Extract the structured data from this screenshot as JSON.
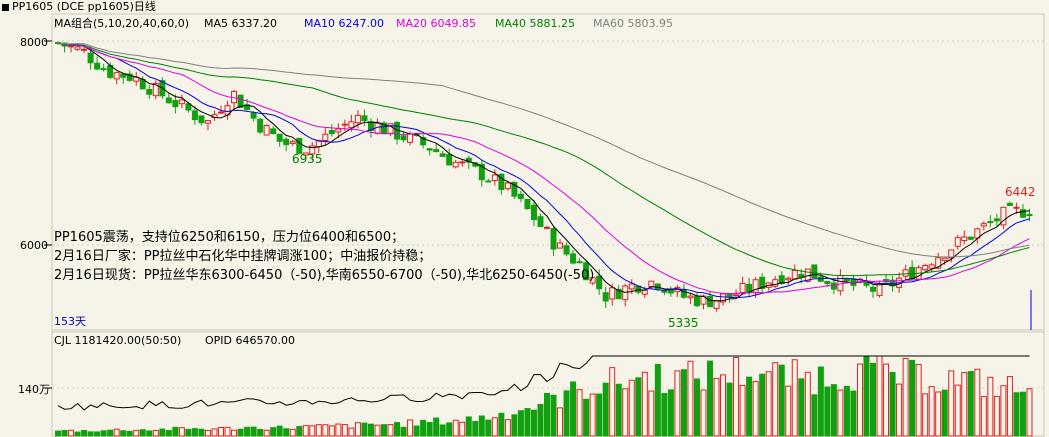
{
  "window": {
    "title": "PP1605   (DCE pp1605)日线"
  },
  "colors": {
    "background": "#f6f4e8",
    "grid": "#d0d0c0",
    "up": "#e02020",
    "down": "#10a010",
    "ma5": "#000000",
    "ma10": "#0000e0",
    "ma20": "#e000e0",
    "ma40": "#008000",
    "ma60": "#808080",
    "volume_up": "#e02020",
    "volume_down": "#10a010",
    "oi_line": "#000000",
    "annotation": "#008000"
  },
  "price_panel": {
    "legend": {
      "name": "MA组合(5,10,20,40,60,0)",
      "items": [
        {
          "label": "MA5 6337.20",
          "color": "#000000"
        },
        {
          "label": "MA10 6247.00",
          "color": "#0000e0"
        },
        {
          "label": "MA20 6049.85",
          "color": "#e000e0"
        },
        {
          "label": "MA40 5881.25",
          "color": "#008000"
        },
        {
          "label": "MA60 5803.95",
          "color": "#808080"
        }
      ]
    },
    "y_ticks": [
      "8000",
      "6000"
    ],
    "peak_labels": {
      "p1": "6935",
      "p2": "5335",
      "p3": "6442"
    },
    "period_label": "153天",
    "news": [
      "PP1605震荡，支持位6250和6150，压力位6400和6500；",
      "2月16日厂家：PP拉丝中石化华中挂牌调涨100；中油报价持稳；",
      "2月16日现货：PP拉丝华东6300-6450（-50),华南6550-6700（-50),华北6250-6450(-50)"
    ]
  },
  "volume_panel": {
    "legend": {
      "cjl": "CJL  1181420.00(50:50)",
      "opid": "OPID  646570.00"
    },
    "y_tick": "140万"
  },
  "chart_data": {
    "type": "candlestick",
    "y_axis": {
      "min": 5335,
      "max": 8000,
      "ticks": [
        6000,
        8000
      ]
    },
    "anchors": [
      {
        "label": "6935",
        "value": 6935
      },
      {
        "label": "5335",
        "value": 5335
      },
      {
        "label": "6442",
        "value": 6442
      }
    ],
    "close_path": [
      7980,
      7900,
      7700,
      7650,
      7500,
      7350,
      7200,
      7500,
      7200,
      7000,
      6950,
      7100,
      7250,
      7150,
      7050,
      6950,
      6800,
      6700,
      6550,
      6300,
      6000,
      5800,
      5500,
      5600,
      5650,
      5500,
      5450,
      5500,
      5600,
      5700,
      5750,
      5650,
      5600,
      5550,
      5700,
      5850,
      6000,
      6150,
      6300,
      6350
    ],
    "volume_path": [
      5,
      5,
      6,
      6,
      7,
      7,
      8,
      8,
      9,
      10,
      11,
      12,
      14,
      16,
      20,
      28,
      38,
      50,
      55,
      60,
      58,
      62,
      65,
      60,
      58,
      62,
      66,
      60,
      58,
      55,
      50,
      45
    ],
    "ma_latest": {
      "MA5": 6337.2,
      "MA10": 6247.0,
      "MA20": 6049.85,
      "MA40": 5881.25,
      "MA60": 5803.95
    },
    "volume_latest": {
      "CJL": 1181420.0,
      "OPID": 646570.0
    }
  }
}
